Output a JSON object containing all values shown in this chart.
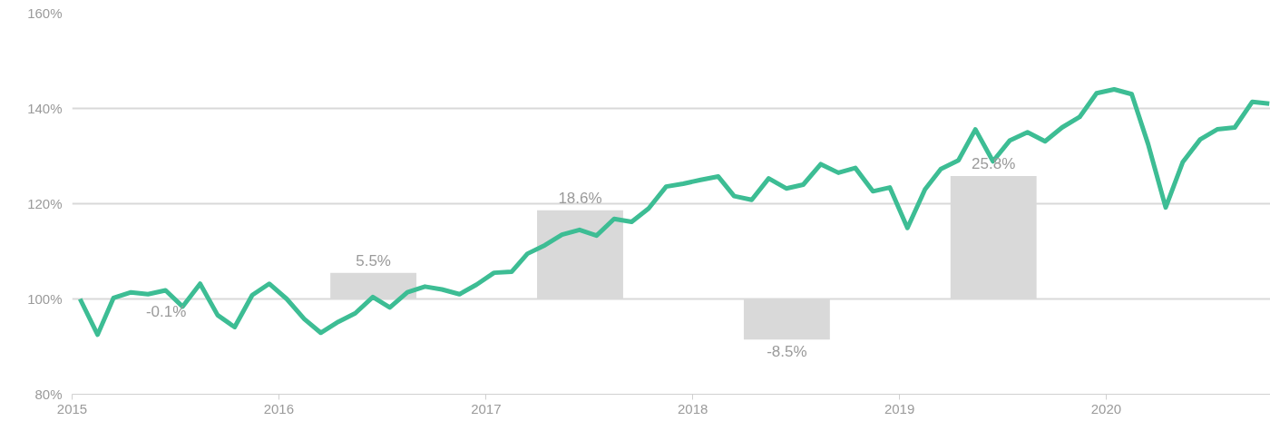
{
  "chart_data": {
    "type": "line",
    "xlim": [
      "2015-01-01",
      "2020-10-17"
    ],
    "ylim": [
      80,
      160
    ],
    "xticks": [
      {
        "value": "2015-01-01",
        "label": "2015"
      },
      {
        "value": "2016-01-01",
        "label": "2016"
      },
      {
        "value": "2017-01-01",
        "label": "2017"
      },
      {
        "value": "2018-01-01",
        "label": "2018"
      },
      {
        "value": "2019-01-01",
        "label": "2019"
      },
      {
        "value": "2020-01-01",
        "label": "2020"
      }
    ],
    "yticks": [
      {
        "value": 80,
        "label": "80%"
      },
      {
        "value": 100,
        "label": "100%"
      },
      {
        "value": 120,
        "label": "120%"
      },
      {
        "value": 140,
        "label": "140%"
      },
      {
        "value": 160,
        "label": "160%"
      }
    ],
    "grid": "y",
    "series": [
      {
        "type": "bar",
        "color": "#d9d9d9",
        "x": [
          "2015-06-16",
          "2016-06-16",
          "2017-06-16",
          "2018-06-16",
          "2019-06-16"
        ],
        "base": [
          100,
          100,
          100,
          100,
          100
        ],
        "values": [
          -0.1,
          5.5,
          18.6,
          -8.5,
          25.8
        ],
        "value_labels": [
          "-0.1%",
          "5.5%",
          "18.6%",
          "-8.5%",
          "25.8%"
        ]
      },
      {
        "color": "#3dbd94",
        "x": [
          "2015-01-15",
          "2015-02-15",
          "2015-03-15",
          "2015-04-15",
          "2015-05-15",
          "2015-06-15",
          "2015-07-15",
          "2015-08-15",
          "2015-09-15",
          "2015-10-15",
          "2015-11-15",
          "2015-12-15",
          "2016-01-15",
          "2016-02-15",
          "2016-03-15",
          "2016-04-15",
          "2016-05-15",
          "2016-06-15",
          "2016-07-15",
          "2016-08-15",
          "2016-09-15",
          "2016-10-15",
          "2016-11-15",
          "2016-12-15",
          "2017-01-15",
          "2017-02-15",
          "2017-03-15",
          "2017-04-15",
          "2017-05-15",
          "2017-06-15",
          "2017-07-15",
          "2017-08-15",
          "2017-09-15",
          "2017-10-15",
          "2017-11-15",
          "2017-12-15",
          "2018-01-15",
          "2018-02-15",
          "2018-03-15",
          "2018-04-15",
          "2018-05-15",
          "2018-06-15",
          "2018-07-15",
          "2018-08-15",
          "2018-09-15",
          "2018-10-15",
          "2018-11-15",
          "2018-12-15",
          "2019-01-15",
          "2019-02-15",
          "2019-03-15",
          "2019-04-15",
          "2019-05-15",
          "2019-06-15",
          "2019-07-15",
          "2019-08-15",
          "2019-09-15",
          "2019-10-15",
          "2019-11-15",
          "2019-12-15",
          "2020-01-15",
          "2020-02-15",
          "2020-03-15",
          "2020-04-15",
          "2020-05-15",
          "2020-06-15",
          "2020-07-15",
          "2020-08-15",
          "2020-09-15",
          "2020-10-15"
        ],
        "values": [
          100.0,
          92.5,
          100.2,
          101.4,
          101.0,
          101.8,
          98.4,
          103.2,
          96.6,
          94.1,
          100.8,
          103.2,
          100.0,
          95.8,
          92.9,
          95.2,
          97.0,
          100.4,
          98.2,
          101.4,
          102.6,
          102.0,
          101.0,
          103.0,
          105.5,
          105.7,
          109.5,
          111.3,
          113.5,
          114.5,
          113.3,
          116.8,
          116.2,
          119.0,
          123.6,
          124.2,
          125.0,
          125.7,
          121.6,
          120.8,
          125.3,
          123.2,
          124.0,
          128.3,
          126.5,
          127.5,
          122.6,
          123.4,
          114.9,
          123.0,
          127.3,
          129.1,
          135.6,
          128.9,
          133.3,
          135.0,
          133.1,
          136.0,
          138.2,
          143.2,
          144.0,
          143.0,
          132.5,
          119.2,
          128.7,
          133.5,
          135.6,
          136.0,
          141.4,
          141.0
        ]
      }
    ]
  }
}
